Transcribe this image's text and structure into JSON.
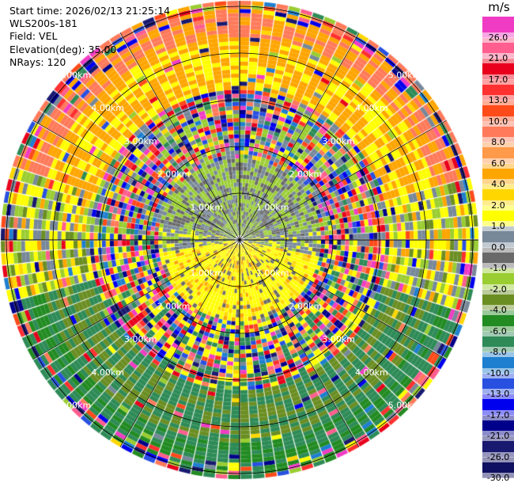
{
  "info": {
    "start_time": "Start time: 2026/02/13 21:25:14",
    "instrument": "WLS200s-181",
    "field": "Field: VEL",
    "elevation": "Elevation(deg): 35.00",
    "nrays": "NRays: 120"
  },
  "colorbar": {
    "unit": "m/s",
    "bins": [
      {
        "color": "#f03cc4",
        "label": "26.0"
      },
      {
        "color": "#ff5e8f",
        "label": "21.0"
      },
      {
        "color": "#e8001c",
        "label": "17.0"
      },
      {
        "color": "#ff3030",
        "label": "13.0"
      },
      {
        "color": "#ff4a1a",
        "label": "10.0"
      },
      {
        "color": "#ff7a5a",
        "label": "8.0"
      },
      {
        "color": "#ff9a4a",
        "label": "6.0"
      },
      {
        "color": "#ffa500",
        "label": "4.0"
      },
      {
        "color": "#ffd700",
        "label": "2.0"
      },
      {
        "color": "#ffff00",
        "label": "1.0"
      },
      {
        "color": "#778899",
        "label": "0.0"
      },
      {
        "color": "#696969",
        "label": "-1.0"
      },
      {
        "color": "#9acd32",
        "label": "-2.0"
      },
      {
        "color": "#6b8e23",
        "label": "-4.0"
      },
      {
        "color": "#228b22",
        "label": "-6.0"
      },
      {
        "color": "#2e8b57",
        "label": "-8.0"
      },
      {
        "color": "#1e7fd0",
        "label": "-10.0"
      },
      {
        "color": "#2850e0",
        "label": "-13.0"
      },
      {
        "color": "#0000ee",
        "label": "-17.0"
      },
      {
        "color": "#00008b",
        "label": "-21.0"
      },
      {
        "color": "#191970",
        "label": "-26.0"
      },
      {
        "color": "#101060",
        "label": "-30.0"
      }
    ]
  },
  "range_rings": [
    "1.00km",
    "2.00km",
    "3.00km",
    "4.00km",
    "5.00km"
  ]
}
